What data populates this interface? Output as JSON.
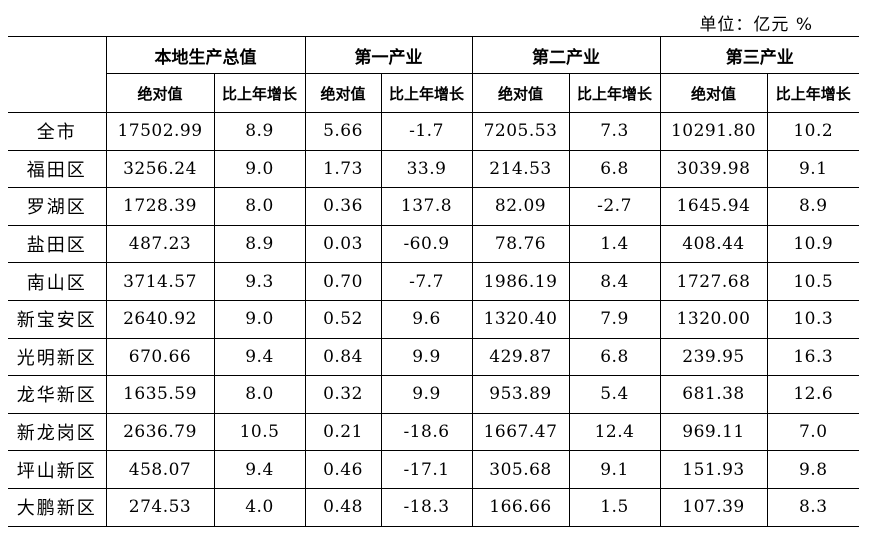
{
  "unit_label": "单位：亿元   %",
  "groups": [
    "本地生产总值",
    "第一产业",
    "第二产业",
    "第三产业"
  ],
  "subheaders": [
    "绝对值",
    "比上年增长",
    "绝对值",
    "比上年增长",
    "绝对值",
    "比上年增长",
    "绝对值",
    "比上年增长"
  ],
  "rows": [
    {
      "name": "全市",
      "values": [
        "17502.99",
        "8.9",
        "5.66",
        "-1.7",
        "7205.53",
        "7.3",
        "10291.80",
        "10.2"
      ]
    },
    {
      "name": "福田区",
      "values": [
        "3256.24",
        "9.0",
        "1.73",
        "33.9",
        "214.53",
        "6.8",
        "3039.98",
        "9.1"
      ]
    },
    {
      "name": "罗湖区",
      "values": [
        "1728.39",
        "8.0",
        "0.36",
        "137.8",
        "82.09",
        "-2.7",
        "1645.94",
        "8.9"
      ]
    },
    {
      "name": "盐田区",
      "values": [
        "487.23",
        "8.9",
        "0.03",
        "-60.9",
        "78.76",
        "1.4",
        "408.44",
        "10.9"
      ]
    },
    {
      "name": "南山区",
      "values": [
        "3714.57",
        "9.3",
        "0.70",
        "-7.7",
        "1986.19",
        "8.4",
        "1727.68",
        "10.5"
      ]
    },
    {
      "name": "新宝安区",
      "values": [
        "2640.92",
        "9.0",
        "0.52",
        "9.6",
        "1320.40",
        "7.9",
        "1320.00",
        "10.3"
      ]
    },
    {
      "name": "光明新区",
      "values": [
        "670.66",
        "9.4",
        "0.84",
        "9.9",
        "429.87",
        "6.8",
        "239.95",
        "16.3"
      ]
    },
    {
      "name": "龙华新区",
      "values": [
        "1635.59",
        "8.0",
        "0.32",
        "9.9",
        "953.89",
        "5.4",
        "681.38",
        "12.6"
      ]
    },
    {
      "name": "新龙岗区",
      "values": [
        "2636.79",
        "10.5",
        "0.21",
        "-18.6",
        "1667.47",
        "12.4",
        "969.11",
        "7.0"
      ]
    },
    {
      "name": "坪山新区",
      "values": [
        "458.07",
        "9.4",
        "0.46",
        "-17.1",
        "305.68",
        "9.1",
        "151.93",
        "9.8"
      ]
    },
    {
      "name": "大鹏新区",
      "values": [
        "274.53",
        "4.0",
        "0.48",
        "-18.3",
        "166.66",
        "1.5",
        "107.39",
        "8.3"
      ]
    }
  ]
}
